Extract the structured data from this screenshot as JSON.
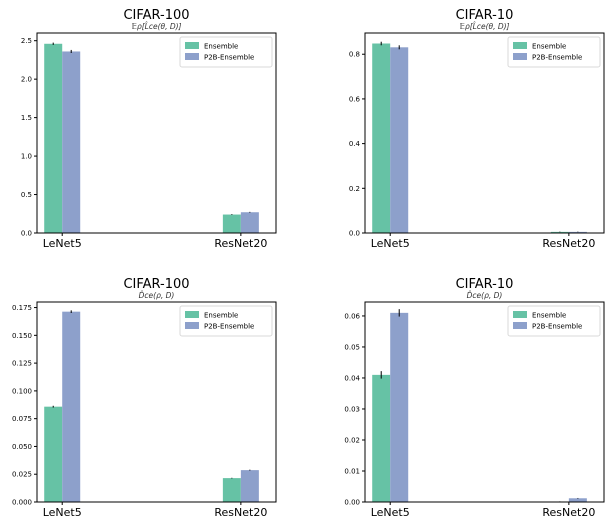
{
  "chart_data": [
    {
      "type": "bar",
      "title": "CIFAR-100",
      "subtitle": "𝔼ρ[L̂ce(θ, D)]",
      "categories": [
        "LeNet5",
        "ResNet20"
      ],
      "series": [
        {
          "name": "Ensemble",
          "values": [
            2.46,
            0.24
          ],
          "errors": [
            0.015,
            0.005
          ]
        },
        {
          "name": "P2B-Ensemble",
          "values": [
            2.36,
            0.27
          ],
          "errors": [
            0.02,
            0.005
          ]
        }
      ],
      "ylim": [
        0,
        2.6
      ],
      "yticks": [
        0.0,
        0.5,
        1.0,
        1.5,
        2.0,
        2.5
      ],
      "ytick_labels": [
        "0.0",
        "0.5",
        "1.0",
        "1.5",
        "2.0",
        "2.5"
      ],
      "legend": "top-right",
      "grid": false
    },
    {
      "type": "bar",
      "title": "CIFAR-10",
      "subtitle": "𝔼ρ[L̂ce(θ, D)]",
      "categories": [
        "LeNet5",
        "ResNet20"
      ],
      "series": [
        {
          "name": "Ensemble",
          "values": [
            0.848,
            0.005
          ],
          "errors": [
            0.008,
            0.001
          ]
        },
        {
          "name": "P2B-Ensemble",
          "values": [
            0.831,
            0.005
          ],
          "errors": [
            0.009,
            0.001
          ]
        }
      ],
      "ylim": [
        0,
        0.895
      ],
      "yticks": [
        0.0,
        0.2,
        0.4,
        0.6,
        0.8
      ],
      "ytick_labels": [
        "0.0",
        "0.2",
        "0.4",
        "0.6",
        "0.8"
      ],
      "legend": "top-right",
      "grid": false
    },
    {
      "type": "bar",
      "title": "CIFAR-100",
      "subtitle": "D̂ce(ρ, D)",
      "categories": [
        "LeNet5",
        "ResNet20"
      ],
      "series": [
        {
          "name": "Ensemble",
          "values": [
            0.0858,
            0.0215
          ],
          "errors": [
            0.0008,
            0.0003
          ]
        },
        {
          "name": "P2B-Ensemble",
          "values": [
            0.1713,
            0.0287
          ],
          "errors": [
            0.0012,
            0.0004
          ]
        }
      ],
      "ylim": [
        0,
        0.18
      ],
      "yticks": [
        0.0,
        0.025,
        0.05,
        0.075,
        0.1,
        0.125,
        0.15,
        0.175
      ],
      "ytick_labels": [
        "0.000",
        "0.025",
        "0.050",
        "0.075",
        "0.100",
        "0.125",
        "0.150",
        "0.175"
      ],
      "legend": "top-right",
      "grid": false
    },
    {
      "type": "bar",
      "title": "CIFAR-10",
      "subtitle": "D̂ce(ρ, D)",
      "categories": [
        "LeNet5",
        "ResNet20"
      ],
      "series": [
        {
          "name": "Ensemble",
          "values": [
            0.041,
            0.0001
          ],
          "errors": [
            0.0012,
            0.0001
          ]
        },
        {
          "name": "P2B-Ensemble",
          "values": [
            0.061,
            0.0012
          ],
          "errors": [
            0.0012,
            0.0001
          ]
        }
      ],
      "ylim": [
        0,
        0.0645
      ],
      "yticks": [
        0.0,
        0.01,
        0.02,
        0.03,
        0.04,
        0.05,
        0.06
      ],
      "ytick_labels": [
        "0.00",
        "0.01",
        "0.02",
        "0.03",
        "0.04",
        "0.05",
        "0.06"
      ],
      "legend": "top-right",
      "grid": false
    }
  ],
  "colors": {
    "Ensemble": "#66c2a5",
    "P2B-Ensemble": "#8da0cb",
    "axis": "#000000",
    "errorbar": "#000000"
  }
}
